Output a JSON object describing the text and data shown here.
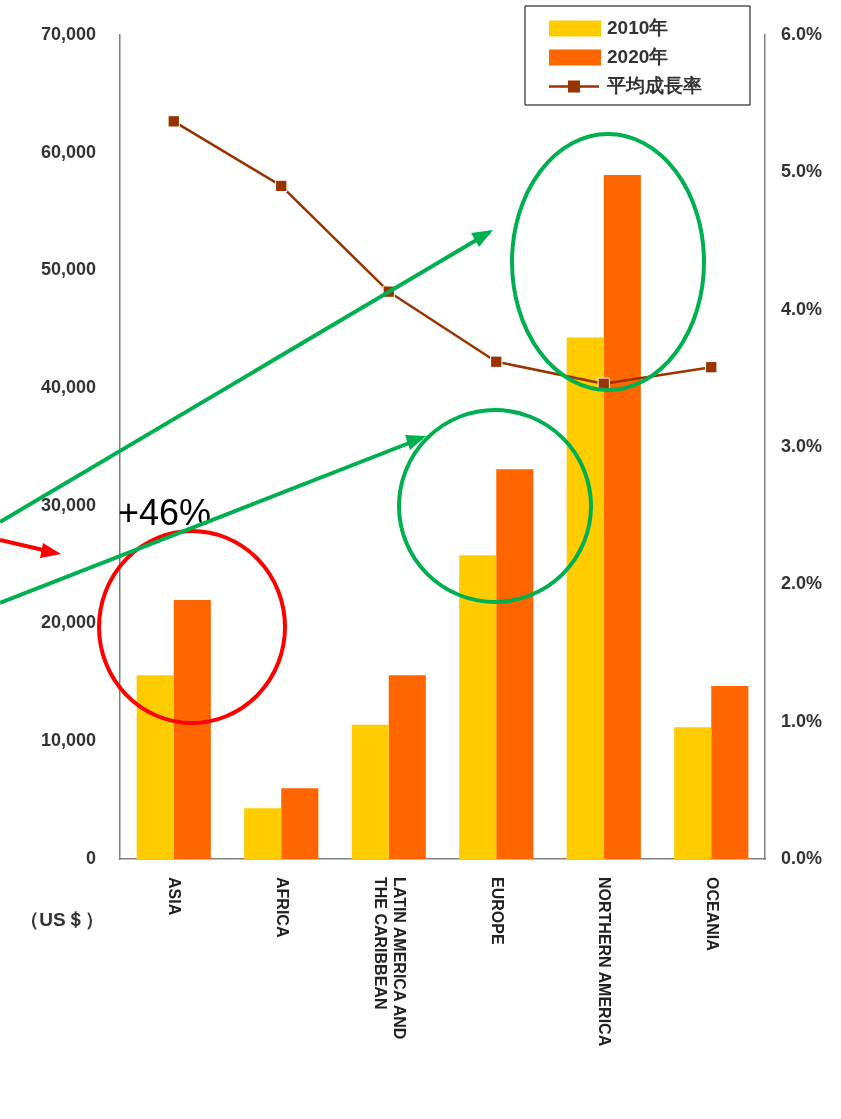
{
  "chart_data": {
    "type": "bar",
    "categories": [
      "ASIA",
      "AFRICA",
      "LATIN AMERICA AND THE CARIBBEAN",
      "EUROPE",
      "NORTHERN AMERICA",
      "OCEANIA"
    ],
    "series": [
      {
        "name": "2010年",
        "color": "#ffcc00",
        "values": [
          15600,
          4300,
          11400,
          25800,
          44300,
          11200
        ]
      },
      {
        "name": "2020年",
        "color": "#ff6600",
        "values": [
          22000,
          6000,
          15600,
          33100,
          58100,
          14700
        ]
      },
      {
        "name": "平均成長率",
        "type": "line",
        "axis": "y2",
        "color": "#993300",
        "values": [
          5.37,
          4.9,
          4.13,
          3.62,
          3.46,
          3.58
        ]
      }
    ],
    "ylim": [
      0,
      70000
    ],
    "yticks": [
      0,
      {
        "value": 10000,
        "label": "10,000"
      },
      {
        "value": 20000,
        "label": "20,000"
      },
      {
        "value": 30000,
        "label": "30,000"
      },
      {
        "value": 40000,
        "label": "40,000"
      },
      {
        "value": 50000,
        "label": "50,000"
      },
      {
        "value": 60000,
        "label": "60,000"
      },
      {
        "value": 70000,
        "label": "70,000"
      }
    ],
    "y2lim": [
      0,
      6
    ],
    "y2ticks": [
      {
        "value": 0,
        "label": "0.0%"
      },
      {
        "value": 1,
        "label": "1.0%"
      },
      {
        "value": 2,
        "label": "2.0%"
      },
      {
        "value": 3,
        "label": "3.0%"
      },
      {
        "value": 4,
        "label": "4.0%"
      },
      {
        "value": 5,
        "label": "5.0%"
      },
      {
        "value": 6,
        "label": "6.0%"
      }
    ],
    "marker": "square",
    "legend": "top right",
    "grid": false,
    "annotations": [
      "+46%",
      "（US＄）"
    ]
  }
}
